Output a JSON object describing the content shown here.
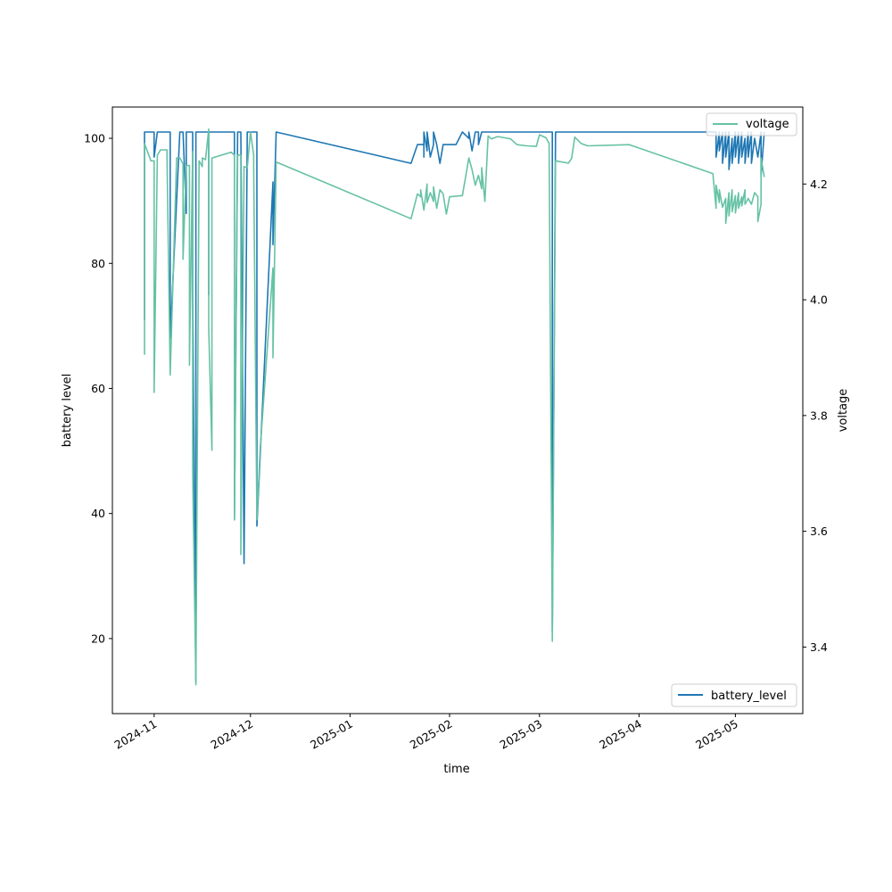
{
  "chart_data": {
    "type": "line",
    "xlabel": "time",
    "ylabel_left": "battery level",
    "ylabel_right": "voltage",
    "x_range": [
      "2024-10-19",
      "2025-05-22"
    ],
    "ylim_left": [
      8,
      105
    ],
    "ylim_right": [
      3.285,
      4.333
    ],
    "x_ticks": [
      "2024-11",
      "2024-12",
      "2025-01",
      "2025-02",
      "2025-03",
      "2025-04",
      "2025-05"
    ],
    "y_ticks_left": [
      20,
      40,
      60,
      80,
      100
    ],
    "y_ticks_right": [
      3.4,
      3.6,
      3.8,
      4.0,
      4.2
    ],
    "legend_top": "voltage",
    "legend_bottom": "battery_level",
    "legend_positions": {
      "voltage": "top-right",
      "battery_level": "bottom-right"
    },
    "series": [
      {
        "name": "battery_level",
        "axis": "left",
        "color": "#1f77b4",
        "points": [
          [
            "2024-10-29",
            71
          ],
          [
            "2024-10-29",
            101
          ],
          [
            "2024-11-01",
            101
          ],
          [
            "2024-11-01",
            97
          ],
          [
            "2024-11-02",
            101
          ],
          [
            "2024-11-06",
            101
          ],
          [
            "2024-11-06",
            68
          ],
          [
            "2024-11-09",
            101
          ],
          [
            "2024-11-10",
            101
          ],
          [
            "2024-11-11",
            88
          ],
          [
            "2024-11-11",
            101
          ],
          [
            "2024-11-13",
            101
          ],
          [
            "2024-11-13",
            75
          ],
          [
            "2024-11-14",
            13
          ],
          [
            "2024-11-14",
            101
          ],
          [
            "2024-11-18",
            101
          ],
          [
            "2024-11-18",
            75
          ],
          [
            "2024-11-18",
            101
          ],
          [
            "2024-11-26",
            101
          ],
          [
            "2024-11-26",
            39
          ],
          [
            "2024-11-27",
            101
          ],
          [
            "2024-11-28",
            101
          ],
          [
            "2024-11-29",
            32
          ],
          [
            "2024-11-30",
            101
          ],
          [
            "2024-12-03",
            101
          ],
          [
            "2024-12-03",
            38
          ],
          [
            "2024-12-08",
            93
          ],
          [
            "2024-12-08",
            83
          ],
          [
            "2024-12-09",
            101
          ],
          [
            "2025-01-20",
            96
          ],
          [
            "2025-01-22",
            99
          ],
          [
            "2025-01-24",
            99
          ],
          [
            "2025-01-24",
            97
          ],
          [
            "2025-01-24",
            101
          ],
          [
            "2025-01-25",
            98
          ],
          [
            "2025-01-25",
            101
          ],
          [
            "2025-01-26",
            97
          ],
          [
            "2025-01-27",
            99
          ],
          [
            "2025-01-27",
            101
          ],
          [
            "2025-01-28",
            99
          ],
          [
            "2025-01-29",
            96
          ],
          [
            "2025-01-30",
            99
          ],
          [
            "2025-02-03",
            99
          ],
          [
            "2025-02-05",
            101
          ],
          [
            "2025-02-07",
            100
          ],
          [
            "2025-02-07",
            101
          ],
          [
            "2025-02-08",
            98
          ],
          [
            "2025-02-09",
            101
          ],
          [
            "2025-02-10",
            101
          ],
          [
            "2025-02-10",
            99
          ],
          [
            "2025-02-11",
            101
          ],
          [
            "2025-03-05",
            101
          ],
          [
            "2025-03-05",
            21
          ],
          [
            "2025-03-06",
            101
          ],
          [
            "2025-04-25",
            101
          ],
          [
            "2025-04-25",
            97
          ],
          [
            "2025-04-26",
            101
          ],
          [
            "2025-04-26",
            98
          ],
          [
            "2025-04-27",
            101
          ],
          [
            "2025-04-27",
            96
          ],
          [
            "2025-04-28",
            101
          ],
          [
            "2025-04-28",
            97
          ],
          [
            "2025-04-29",
            101
          ],
          [
            "2025-04-29",
            95
          ],
          [
            "2025-04-30",
            100
          ],
          [
            "2025-04-30",
            96
          ],
          [
            "2025-05-01",
            101
          ],
          [
            "2025-05-01",
            97
          ],
          [
            "2025-05-02",
            101
          ],
          [
            "2025-05-02",
            96
          ],
          [
            "2025-05-03",
            101
          ],
          [
            "2025-05-03",
            97
          ],
          [
            "2025-05-04",
            100
          ],
          [
            "2025-05-04",
            96
          ],
          [
            "2025-05-05",
            101
          ],
          [
            "2025-05-05",
            97
          ],
          [
            "2025-05-06",
            101
          ],
          [
            "2025-05-06",
            96
          ],
          [
            "2025-05-07",
            100
          ],
          [
            "2025-05-08",
            97
          ],
          [
            "2025-05-09",
            101
          ],
          [
            "2025-05-09",
            94
          ],
          [
            "2025-05-10",
            101
          ]
        ]
      },
      {
        "name": "voltage",
        "axis": "right",
        "color": "#66c2a5",
        "points": [
          [
            "2024-10-29",
            3.905
          ],
          [
            "2024-10-29",
            4.27
          ],
          [
            "2024-10-31",
            4.24
          ],
          [
            "2024-11-01",
            4.24
          ],
          [
            "2024-11-01",
            3.84
          ],
          [
            "2024-11-02",
            4.25
          ],
          [
            "2024-11-03",
            4.259
          ],
          [
            "2024-11-05",
            4.259
          ],
          [
            "2024-11-05",
            4.25
          ],
          [
            "2024-11-06",
            3.87
          ],
          [
            "2024-11-08",
            4.245
          ],
          [
            "2024-11-09",
            4.245
          ],
          [
            "2024-11-10",
            4.235
          ],
          [
            "2024-11-10",
            4.07
          ],
          [
            "2024-11-11",
            4.232
          ],
          [
            "2024-11-12",
            4.232
          ],
          [
            "2024-11-12",
            3.887
          ],
          [
            "2024-11-13",
            4.256
          ],
          [
            "2024-11-13",
            3.7
          ],
          [
            "2024-11-14",
            3.335
          ],
          [
            "2024-11-15",
            4.24
          ],
          [
            "2024-11-16",
            4.23
          ],
          [
            "2024-11-16",
            4.245
          ],
          [
            "2024-11-17",
            4.242
          ],
          [
            "2024-11-18",
            4.295
          ],
          [
            "2024-11-18",
            3.95
          ],
          [
            "2024-11-19",
            3.74
          ],
          [
            "2024-11-19",
            4.245
          ],
          [
            "2024-11-25",
            4.255
          ],
          [
            "2024-11-26",
            4.25
          ],
          [
            "2024-11-26",
            3.62
          ],
          [
            "2024-11-27",
            4.25
          ],
          [
            "2024-11-28",
            4.25
          ],
          [
            "2024-11-28",
            3.56
          ],
          [
            "2024-11-29",
            4.23
          ],
          [
            "2024-11-30",
            4.228
          ],
          [
            "2024-12-01",
            4.29
          ],
          [
            "2024-12-02",
            4.25
          ],
          [
            "2024-12-02",
            4.228
          ],
          [
            "2024-12-03",
            3.62
          ],
          [
            "2024-12-04",
            3.74
          ],
          [
            "2024-12-08",
            4.055
          ],
          [
            "2024-12-08",
            3.9
          ],
          [
            "2024-12-09",
            4.238
          ],
          [
            "2025-01-20",
            4.14
          ],
          [
            "2025-01-22",
            4.183
          ],
          [
            "2025-01-23",
            4.178
          ],
          [
            "2025-01-23",
            4.19
          ],
          [
            "2025-01-24",
            4.155
          ],
          [
            "2025-01-25",
            4.2
          ],
          [
            "2025-01-25",
            4.168
          ],
          [
            "2025-01-26",
            4.185
          ],
          [
            "2025-01-27",
            4.17
          ],
          [
            "2025-01-27",
            4.195
          ],
          [
            "2025-01-28",
            4.158
          ],
          [
            "2025-01-29",
            4.19
          ],
          [
            "2025-01-30",
            4.183
          ],
          [
            "2025-01-31",
            4.148
          ],
          [
            "2025-02-01",
            4.178
          ],
          [
            "2025-02-05",
            4.18
          ],
          [
            "2025-02-07",
            4.245
          ],
          [
            "2025-02-08",
            4.225
          ],
          [
            "2025-02-09",
            4.198
          ],
          [
            "2025-02-10",
            4.215
          ],
          [
            "2025-02-11",
            4.192
          ],
          [
            "2025-02-11",
            4.228
          ],
          [
            "2025-02-12",
            4.17
          ],
          [
            "2025-02-13",
            4.283
          ],
          [
            "2025-02-14",
            4.278
          ],
          [
            "2025-02-16",
            4.282
          ],
          [
            "2025-02-18",
            4.28
          ],
          [
            "2025-02-20",
            4.278
          ],
          [
            "2025-02-22",
            4.268
          ],
          [
            "2025-02-25",
            4.266
          ],
          [
            "2025-02-28",
            4.265
          ],
          [
            "2025-03-01",
            4.285
          ],
          [
            "2025-03-03",
            4.28
          ],
          [
            "2025-03-04",
            4.27
          ],
          [
            "2025-03-05",
            3.41
          ],
          [
            "2025-03-06",
            4.24
          ],
          [
            "2025-03-10",
            4.236
          ],
          [
            "2025-03-11",
            4.244
          ],
          [
            "2025-03-12",
            4.281
          ],
          [
            "2025-03-14",
            4.27
          ],
          [
            "2025-03-16",
            4.266
          ],
          [
            "2025-03-29",
            4.268
          ],
          [
            "2025-04-24",
            4.218
          ],
          [
            "2025-04-25",
            4.158
          ],
          [
            "2025-04-25",
            4.198
          ],
          [
            "2025-04-26",
            4.168
          ],
          [
            "2025-04-26",
            4.19
          ],
          [
            "2025-04-27",
            4.16
          ],
          [
            "2025-04-28",
            4.175
          ],
          [
            "2025-04-28",
            4.132
          ],
          [
            "2025-04-29",
            4.185
          ],
          [
            "2025-04-29",
            4.145
          ],
          [
            "2025-04-30",
            4.19
          ],
          [
            "2025-04-30",
            4.152
          ],
          [
            "2025-05-01",
            4.18
          ],
          [
            "2025-05-01",
            4.15
          ],
          [
            "2025-05-02",
            4.185
          ],
          [
            "2025-05-02",
            4.158
          ],
          [
            "2025-05-03",
            4.178
          ],
          [
            "2025-05-03",
            4.162
          ],
          [
            "2025-05-04",
            4.19
          ],
          [
            "2025-05-04",
            4.165
          ],
          [
            "2025-05-05",
            4.175
          ],
          [
            "2025-05-06",
            4.165
          ],
          [
            "2025-05-07",
            4.185
          ],
          [
            "2025-05-08",
            4.178
          ],
          [
            "2025-05-08",
            4.135
          ],
          [
            "2025-05-09",
            4.165
          ],
          [
            "2025-05-09",
            4.245
          ],
          [
            "2025-05-10",
            4.212
          ]
        ]
      }
    ]
  }
}
